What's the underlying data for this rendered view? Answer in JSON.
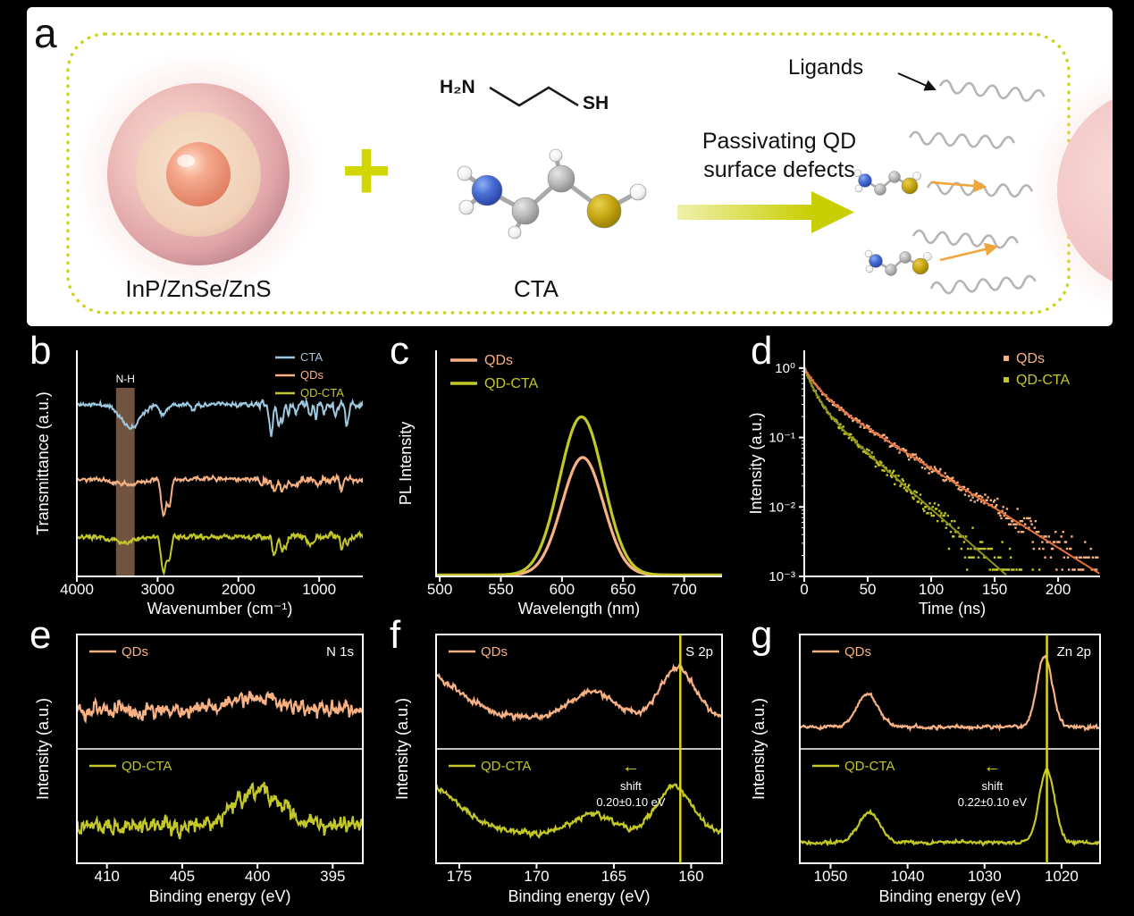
{
  "panel_labels": {
    "a": "a",
    "b": "b",
    "c": "c",
    "d": "d",
    "e": "e",
    "f": "f",
    "g": "g"
  },
  "panel_a": {
    "core_shell_label": "InP/ZnSe/ZnS",
    "plus_sign": "+",
    "molecule_label": "CTA",
    "formula_left": "H₂N",
    "formula_right": "SH",
    "process_text_line1": "Passivating QD",
    "process_text_line2": "surface defects",
    "ligands_label": "Ligands"
  },
  "colors": {
    "accent_yellow": "#d2d703",
    "qds_orange": "#f7b183",
    "qd_cta_olive": "#c3c728",
    "cta_blue": "#9ecae1",
    "background": "#000000",
    "panel_background": "#ffffff"
  },
  "chart_data": [
    {
      "id": "ftir",
      "type": "line",
      "panel": "b",
      "xlabel": "Wavenumber (cm⁻¹)",
      "ylabel": "Transmittance (a.u.)",
      "x_range": [
        4000,
        460
      ],
      "x_ticks": [
        4000,
        3000,
        2000,
        1000
      ],
      "highlight_band": {
        "center": 3400,
        "half_width": 115,
        "color": "rgba(249,186,143,0.45)",
        "label": "N-H"
      },
      "legend": [
        "CTA",
        "QDs",
        "QD-CTA"
      ],
      "series": [
        {
          "name": "CTA",
          "color": "#9ecae1",
          "baseline": 0.76,
          "noise": 0.006,
          "dips": [
            [
              3340,
              115,
              0.1
            ],
            [
              2930,
              40,
              0.04
            ],
            [
              2560,
              25,
              0.025
            ],
            [
              1595,
              22,
              0.14
            ],
            [
              1500,
              16,
              0.1
            ],
            [
              1455,
              14,
              0.08
            ],
            [
              1380,
              12,
              0.05
            ],
            [
              1290,
              14,
              0.05
            ],
            [
              1110,
              16,
              0.06
            ],
            [
              1040,
              12,
              0.06
            ],
            [
              940,
              12,
              0.04
            ],
            [
              800,
              16,
              0.06
            ],
            [
              655,
              20,
              0.09
            ]
          ]
        },
        {
          "name": "QDs",
          "color": "#f7b183",
          "baseline": 0.43,
          "noise": 0.006,
          "dips": [
            [
              3420,
              160,
              0.025
            ],
            [
              2925,
              30,
              0.17
            ],
            [
              2853,
              22,
              0.11
            ],
            [
              1710,
              18,
              0.02
            ],
            [
              1555,
              28,
              0.055
            ],
            [
              1460,
              22,
              0.05
            ],
            [
              1408,
              18,
              0.035
            ],
            [
              1300,
              45,
              0.02
            ],
            [
              1020,
              30,
              0.025
            ],
            [
              722,
              16,
              0.055
            ]
          ]
        },
        {
          "name": "QD-CTA",
          "color": "#c3c728",
          "baseline": 0.175,
          "noise": 0.006,
          "dips": [
            [
              3420,
              160,
              0.02
            ],
            [
              2925,
              30,
              0.16
            ],
            [
              2853,
              22,
              0.1
            ],
            [
              1555,
              28,
              0.06
            ],
            [
              1460,
              22,
              0.05
            ],
            [
              1408,
              18,
              0.03
            ],
            [
              1100,
              40,
              0.03
            ],
            [
              722,
              16,
              0.05
            ],
            [
              655,
              18,
              0.04
            ]
          ]
        }
      ]
    },
    {
      "id": "pl",
      "type": "line",
      "panel": "c",
      "xlabel": "Wavelength (nm)",
      "ylabel": "PL Intensity",
      "x_range": [
        497,
        731
      ],
      "x_ticks": [
        500,
        550,
        600,
        650,
        700
      ],
      "legend": [
        "QDs",
        "QD-CTA"
      ],
      "series": [
        {
          "name": "QDs",
          "color": "#f7b183",
          "peak": {
            "center": 617,
            "sigma": 17,
            "amplitude": 0.52
          }
        },
        {
          "name": "QD-CTA",
          "color": "#c3c728",
          "peak": {
            "center": 616,
            "sigma": 18,
            "amplitude": 0.7
          }
        }
      ]
    },
    {
      "id": "trpl",
      "type": "scatter",
      "panel": "d",
      "xlabel": "Time (ns)",
      "ylabel": "Intensity (a.u.)",
      "x_range": [
        0,
        233
      ],
      "x_ticks": [
        0,
        50,
        100,
        150,
        200
      ],
      "y_tick_labels": [
        "10⁰",
        "10⁻¹",
        "10⁻²",
        "10⁻³"
      ],
      "y_tick_values": [
        1,
        0.1,
        0.01,
        0.001
      ],
      "y_range": [
        0.001,
        1.8
      ],
      "legend": [
        "QDs",
        "QD-CTA"
      ],
      "series": [
        {
          "name": "QDs",
          "color": "#f7b183",
          "fit_color": "#e8713a",
          "decay": {
            "a1": 0.5,
            "tau1": 9,
            "a2": 0.5,
            "tau2": 38
          }
        },
        {
          "name": "QD-CTA",
          "color": "#c3c728",
          "fit_color": "#8f931e",
          "decay": {
            "a1": 0.62,
            "tau1": 7,
            "a2": 0.38,
            "tau2": 27
          }
        }
      ]
    },
    {
      "id": "xps_n1s",
      "type": "line",
      "panel": "e",
      "region_label": "N 1s",
      "xlabel": "Binding energy (eV)",
      "ylabel": "Intensity (a.u.)",
      "x_range": [
        412,
        393
      ],
      "x_ticks": [
        410,
        405,
        400,
        395
      ],
      "panels": [
        {
          "name": "QDs",
          "color": "#f7b183",
          "baseline": 0.32,
          "noise": 0.055,
          "peaks": [
            [
              400.3,
              1.9,
              0.16
            ]
          ]
        },
        {
          "name": "QD-CTA",
          "color": "#c3c728",
          "baseline": 0.3,
          "noise": 0.06,
          "peaks": [
            [
              399.9,
              1.5,
              0.43
            ]
          ]
        }
      ]
    },
    {
      "id": "xps_s2p",
      "type": "line",
      "panel": "f",
      "region_label": "S 2p",
      "xlabel": "Binding energy (eV)",
      "ylabel": "Intensity (a.u.)",
      "x_range": [
        176.5,
        158
      ],
      "x_ticks": [
        175,
        170,
        165,
        160
      ],
      "vline": 160.7,
      "shift": {
        "x": 163.9,
        "arrow": "←",
        "line1": "shift",
        "line2": "0.20±0.10 eV"
      },
      "panels": [
        {
          "name": "QDs",
          "color": "#f7b183",
          "baseline": 0.24,
          "noise": 0.02,
          "peaks": [
            [
              178,
              2.6,
              0.55
            ],
            [
              166.4,
              1.4,
              0.3
            ],
            [
              160.9,
              1.1,
              0.55
            ]
          ]
        },
        {
          "name": "QD-CTA",
          "color": "#c3c728",
          "baseline": 0.22,
          "noise": 0.02,
          "peaks": [
            [
              178,
              2.6,
              0.62
            ],
            [
              166.3,
              1.4,
              0.22
            ],
            [
              161.1,
              1.15,
              0.52
            ]
          ]
        }
      ]
    },
    {
      "id": "xps_zn2p",
      "type": "line",
      "panel": "g",
      "region_label": "Zn 2p",
      "xlabel": "Binding energy (eV)",
      "ylabel": "Intensity (a.u.)",
      "x_range": [
        1054,
        1015
      ],
      "x_ticks": [
        1050,
        1040,
        1030,
        1020
      ],
      "vline": 1021.9,
      "shift": {
        "x": 1029,
        "arrow": "←",
        "line1": "shift",
        "line2": "0.22±0.10 eV"
      },
      "panels": [
        {
          "name": "QDs",
          "color": "#f7b183",
          "baseline": 0.14,
          "noise": 0.013,
          "peaks": [
            [
              1045.2,
              1.4,
              0.36
            ],
            [
              1022.2,
              1.0,
              0.78
            ]
          ]
        },
        {
          "name": "QD-CTA",
          "color": "#c3c728",
          "baseline": 0.13,
          "noise": 0.013,
          "peaks": [
            [
              1045.0,
              1.4,
              0.33
            ],
            [
              1021.9,
              1.0,
              0.8
            ]
          ]
        }
      ]
    }
  ]
}
